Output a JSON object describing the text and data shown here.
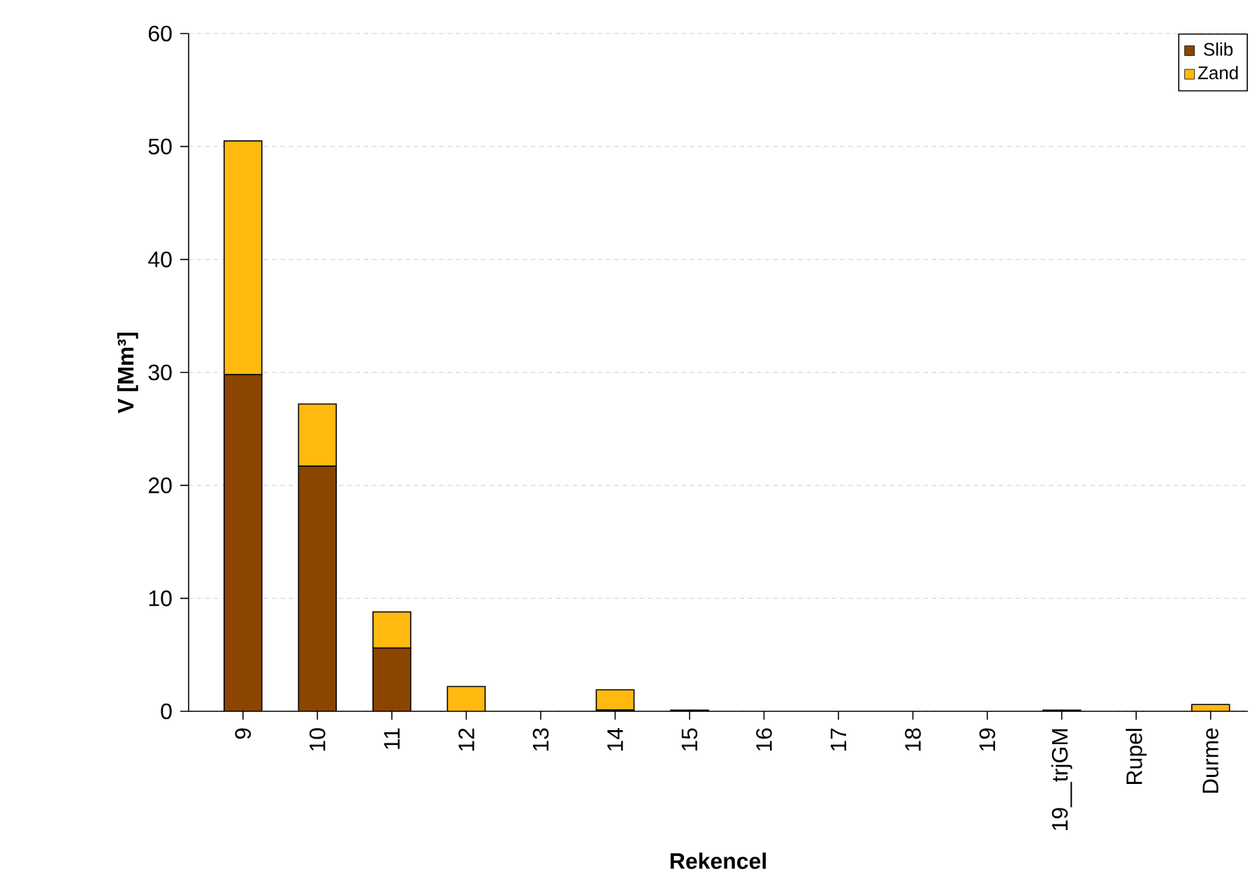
{
  "chart_data": {
    "type": "bar",
    "stacked": true,
    "xlabel": "Rekencel",
    "ylabel": "V [Mm³]",
    "categories": [
      "9",
      "10",
      "11",
      "12",
      "13",
      "14",
      "15",
      "16",
      "17",
      "18",
      "19",
      "19__trjGM",
      "Rupel",
      "Durme"
    ],
    "series": [
      {
        "name": "Slib",
        "color": "#8b4500",
        "values": [
          29.8,
          21.7,
          5.6,
          0,
          0,
          0.1,
          0.1,
          0,
          0,
          0,
          0,
          0.1,
          0,
          0
        ]
      },
      {
        "name": "Zand",
        "color": "#ffb90f",
        "values": [
          20.7,
          5.5,
          3.2,
          2.2,
          0,
          1.8,
          0,
          0,
          0,
          0,
          0,
          0,
          0,
          0.6
        ]
      }
    ],
    "ylim": [
      0,
      60
    ],
    "yticks": [
      0,
      10,
      20,
      30,
      40,
      50,
      60
    ],
    "grid": "y",
    "legend": "top right"
  }
}
